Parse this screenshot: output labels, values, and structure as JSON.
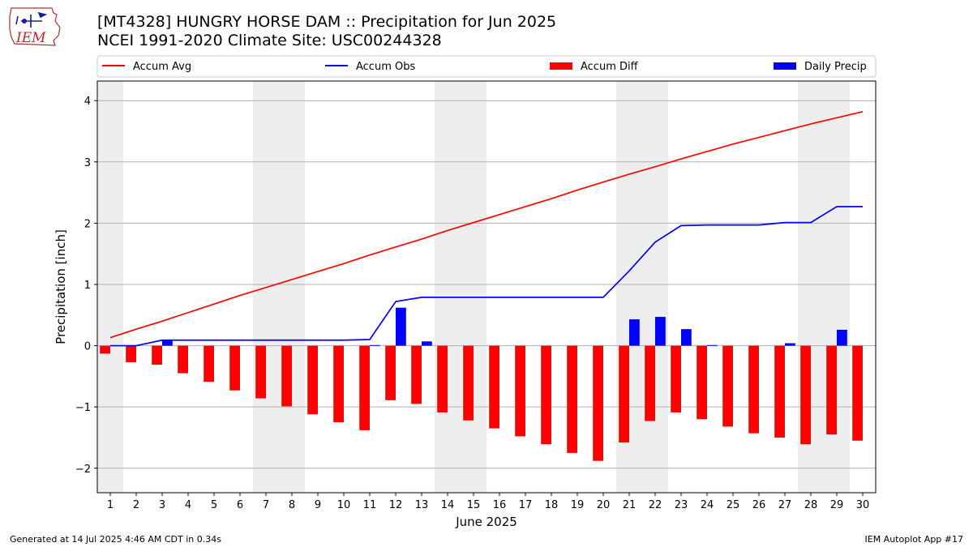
{
  "title_line1": "[MT4328] HUNGRY HORSE DAM :: Precipitation for Jun 2025",
  "title_line2": "NCEI 1991-2020 Climate Site: USC00244328",
  "logo_text": "IEM",
  "footer_left": "Generated at 14 Jul 2025 4:46 AM CDT in 0.34s",
  "footer_right": "IEM Autoplot App #17",
  "colors": {
    "accum_avg": "#ff0000",
    "accum_obs": "#0000ff",
    "accum_diff": "#ff0000",
    "daily_precip": "#0000ff",
    "weekend_shade": "#eeeeee",
    "grid": "#b0b0b0"
  },
  "chart_data": {
    "type": "bar",
    "xlabel": "June 2025",
    "ylabel": "Precipitation [inch]",
    "xlim": [
      0.5,
      30.5
    ],
    "ylim": [
      -2.4,
      4.32
    ],
    "yticks": [
      -2,
      -1,
      0,
      1,
      2,
      3,
      4
    ],
    "ytick_labels": [
      "−2",
      "−1",
      "0",
      "1",
      "2",
      "3",
      "4"
    ],
    "grid": "horizontal",
    "legend_position": "top",
    "shaded_days": [
      [
        0.5,
        1.5
      ],
      [
        6.5,
        8.5
      ],
      [
        13.5,
        15.5
      ],
      [
        20.5,
        22.5
      ],
      [
        27.5,
        29.5
      ]
    ],
    "days": [
      1,
      2,
      3,
      4,
      5,
      6,
      7,
      8,
      9,
      10,
      11,
      12,
      13,
      14,
      15,
      16,
      17,
      18,
      19,
      20,
      21,
      22,
      23,
      24,
      25,
      26,
      27,
      28,
      29,
      30
    ],
    "series": [
      {
        "name": "Accum Avg",
        "kind": "line",
        "values": [
          0.13,
          0.27,
          0.4,
          0.54,
          0.68,
          0.82,
          0.95,
          1.08,
          1.21,
          1.34,
          1.48,
          1.61,
          1.74,
          1.88,
          2.01,
          2.14,
          2.27,
          2.4,
          2.54,
          2.67,
          2.8,
          2.92,
          3.05,
          3.17,
          3.29,
          3.4,
          3.51,
          3.62,
          3.72,
          3.82
        ]
      },
      {
        "name": "Accum Obs",
        "kind": "line",
        "values": [
          0.0,
          0.0,
          0.09,
          0.09,
          0.09,
          0.09,
          0.09,
          0.09,
          0.09,
          0.09,
          0.1,
          0.72,
          0.79,
          0.79,
          0.79,
          0.79,
          0.79,
          0.79,
          0.79,
          0.79,
          1.22,
          1.69,
          1.96,
          1.97,
          1.97,
          1.97,
          2.01,
          2.01,
          2.27,
          2.27
        ]
      },
      {
        "name": "Accum Diff",
        "kind": "bar",
        "values": [
          -0.13,
          -0.27,
          -0.31,
          -0.45,
          -0.59,
          -0.73,
          -0.86,
          -0.99,
          -1.12,
          -1.25,
          -1.38,
          -0.89,
          -0.95,
          -1.09,
          -1.22,
          -1.35,
          -1.48,
          -1.61,
          -1.75,
          -1.88,
          -1.58,
          -1.23,
          -1.09,
          -1.2,
          -1.32,
          -1.43,
          -1.5,
          -1.61,
          -1.45,
          -1.55
        ]
      },
      {
        "name": "Daily Precip",
        "kind": "bar",
        "values": [
          0.0,
          0.0,
          0.09,
          0.0,
          0.0,
          0.0,
          0.0,
          0.0,
          0.0,
          0.0,
          0.01,
          0.62,
          0.07,
          0.0,
          0.0,
          0.0,
          0.0,
          0.0,
          0.0,
          0.0,
          0.43,
          0.47,
          0.27,
          0.01,
          0.0,
          0.0,
          0.04,
          0.0,
          0.26,
          0.0
        ]
      }
    ]
  }
}
